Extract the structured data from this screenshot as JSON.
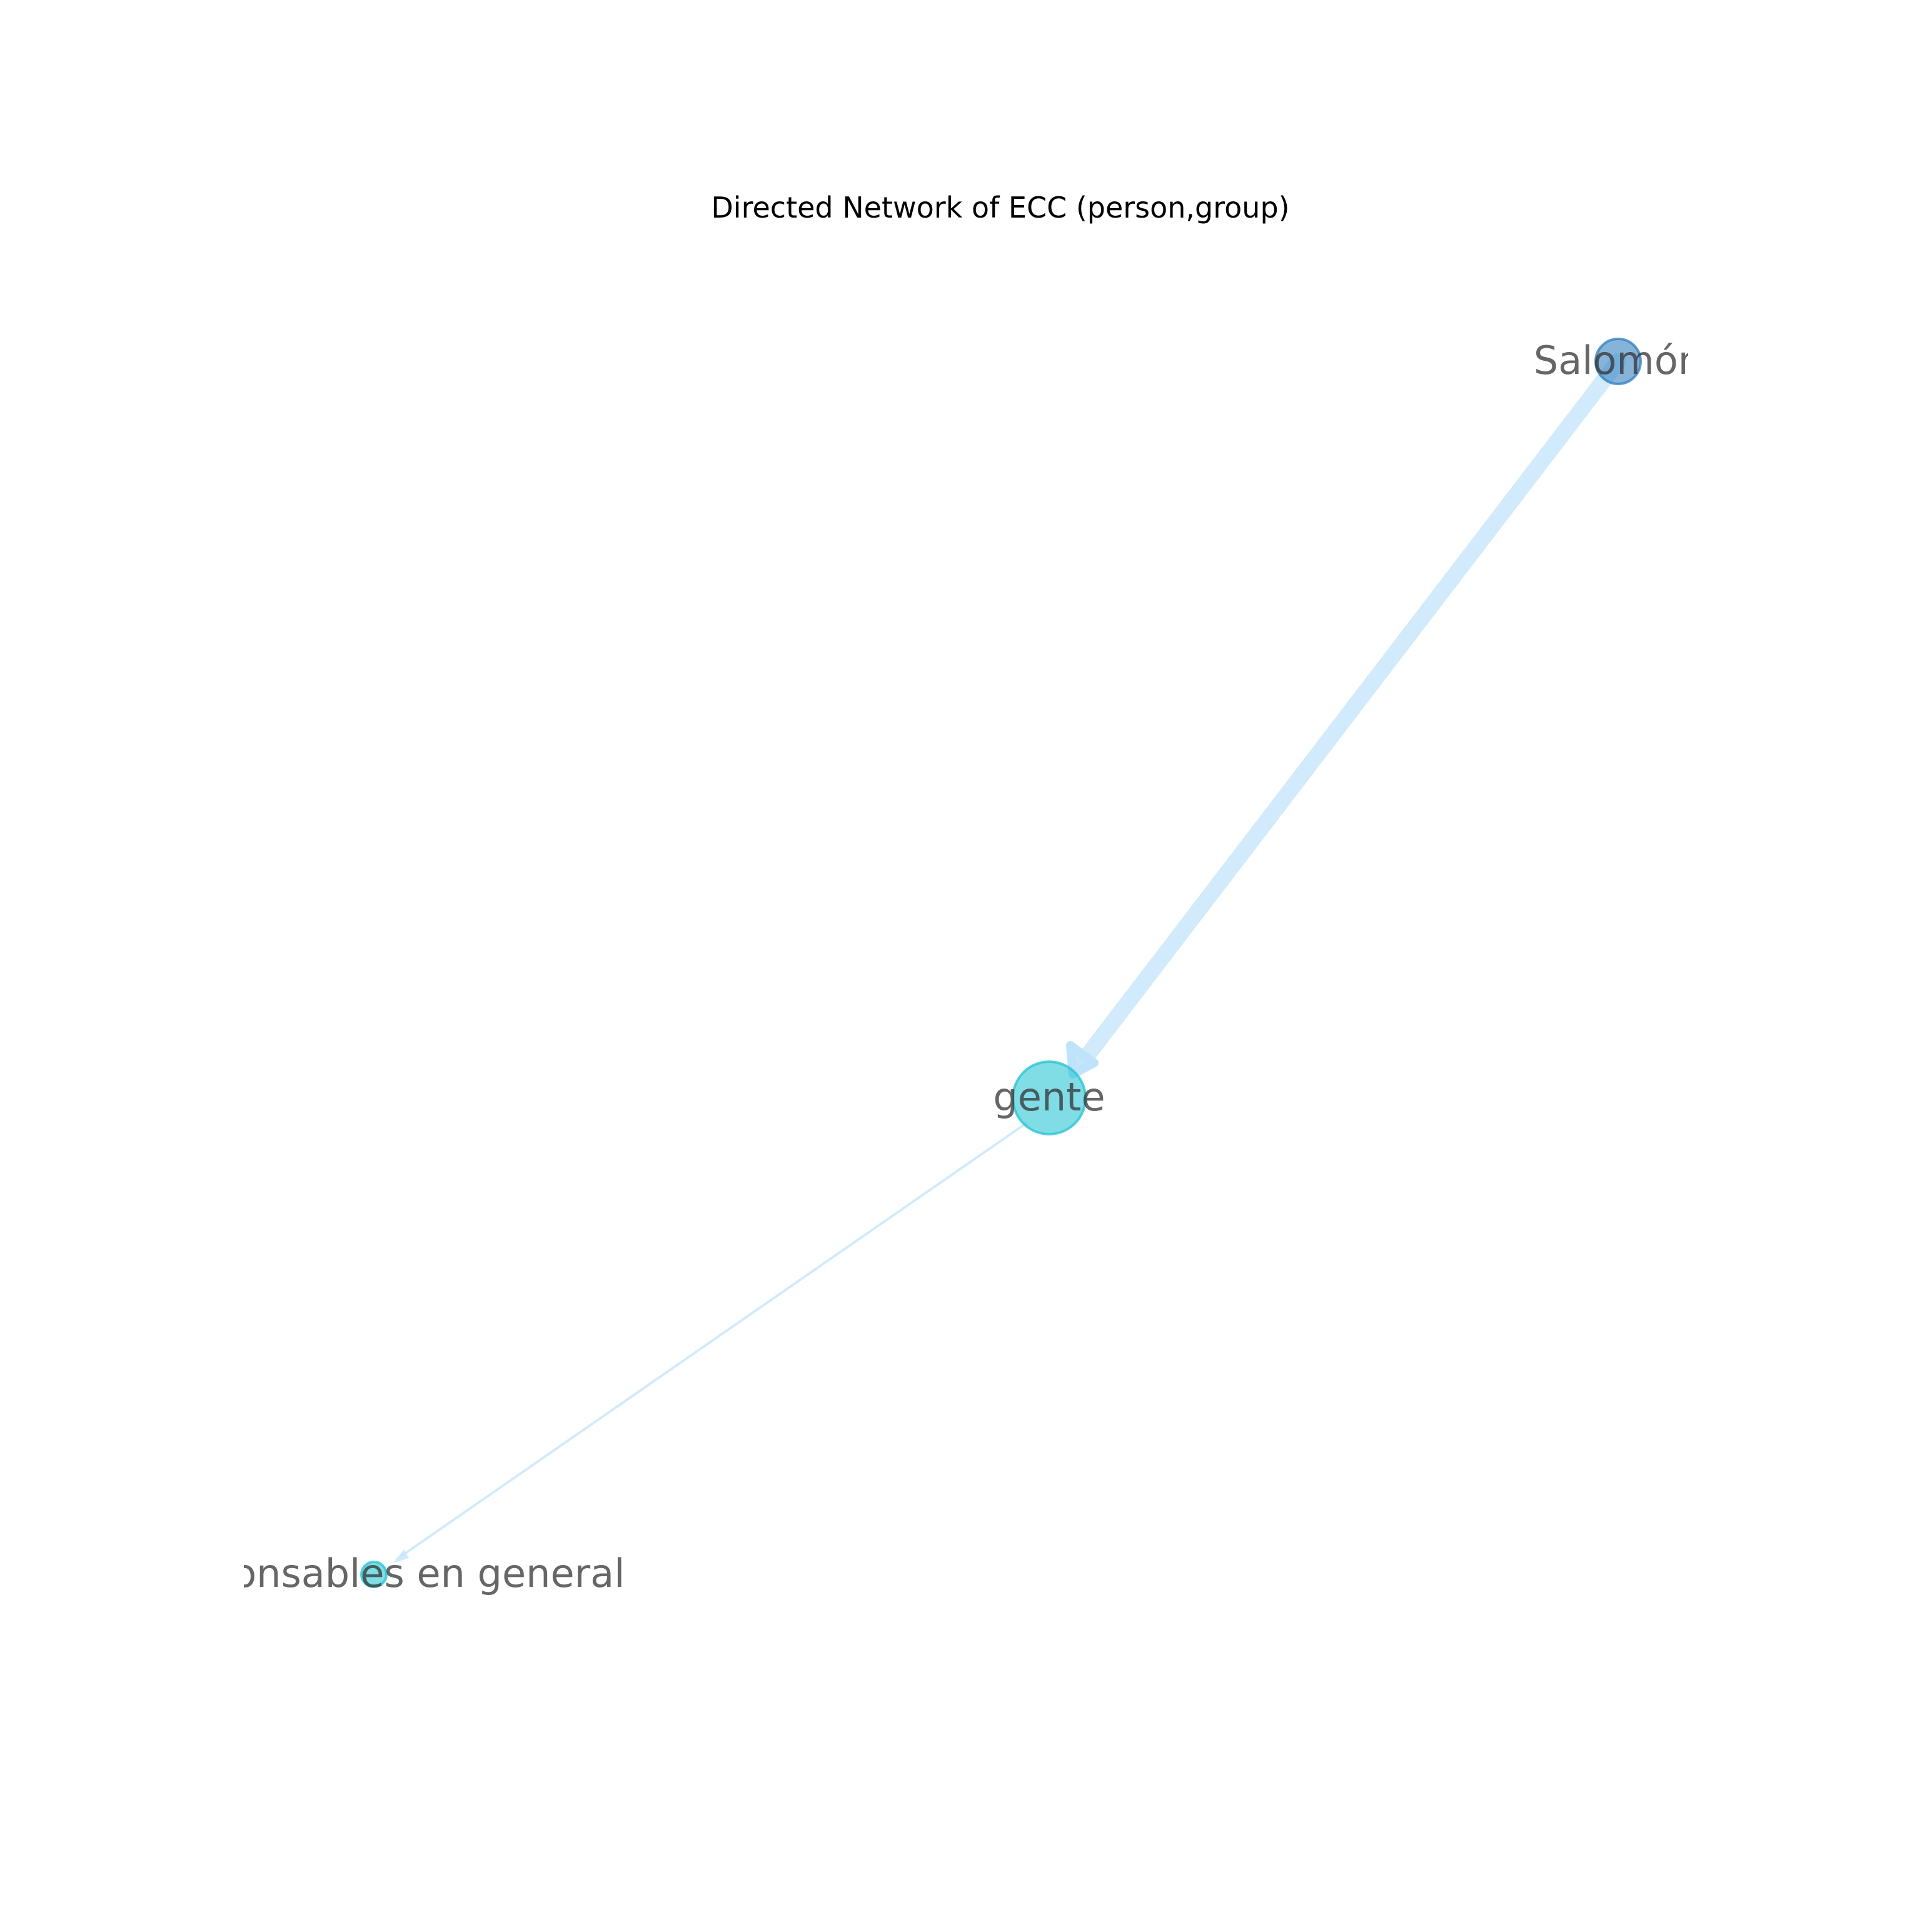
{
  "title": "Directed Network of ECC (person,group)",
  "colors": {
    "edge": "#bfe3fb",
    "edge_stroke_opacity": "0.7",
    "person_node": "#2e7ebd",
    "group_node": "#24c3d3",
    "label": "#333333",
    "background": "#ffffff"
  },
  "nodes": [
    {
      "id": "salomon",
      "label": "Salomón",
      "type": "person"
    },
    {
      "id": "gente",
      "label": "gente",
      "type": "group"
    },
    {
      "id": "irresponsables",
      "label": "irresponsables en general",
      "type": "group"
    }
  ],
  "edges": [
    {
      "source": "salomon",
      "target": "gente",
      "weight": "heavy"
    },
    {
      "source": "gente",
      "target": "irresponsables",
      "weight": "light"
    }
  ]
}
